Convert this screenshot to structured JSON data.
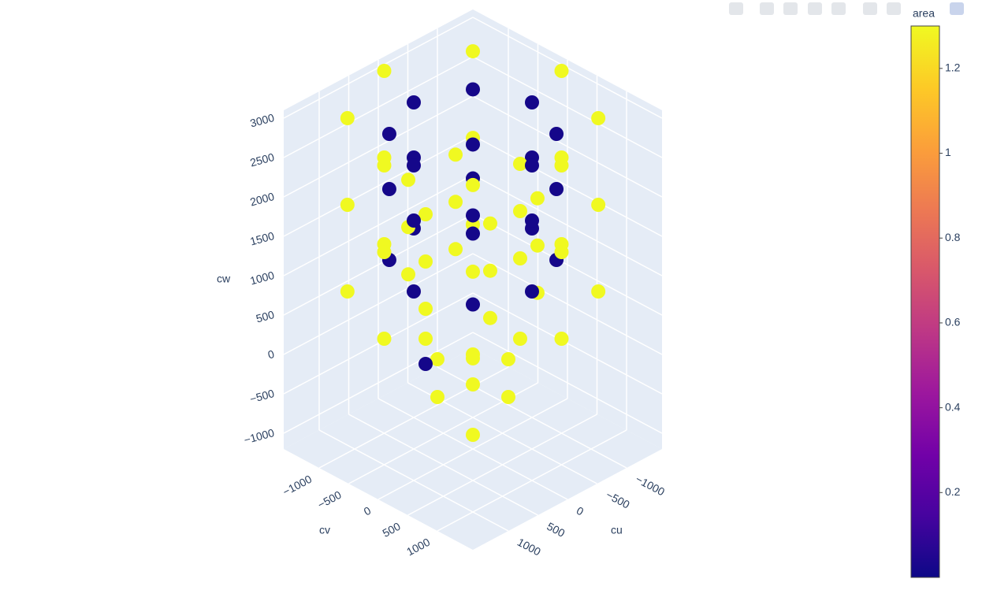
{
  "chart_data": {
    "type": "scatter3d",
    "x_label": "cu",
    "y_label": "cv",
    "z_label": "cw",
    "xlim": [
      -1600,
      1600
    ],
    "ylim": [
      -1600,
      1600
    ],
    "zlim": [
      -1200,
      3100
    ],
    "xticks": [
      {
        "value": -1000,
        "label": "−1000"
      },
      {
        "value": -500,
        "label": "−500"
      },
      0,
      500,
      1000
    ],
    "yticks": [
      {
        "value": -1000,
        "label": "−1000"
      },
      {
        "value": -500,
        "label": "−500"
      },
      0,
      500,
      1000
    ],
    "zticks": [
      {
        "value": -1000,
        "label": "−1000"
      },
      {
        "value": -500,
        "label": "−500"
      },
      0,
      500,
      1000,
      1500,
      2000,
      2500,
      3000
    ],
    "grid": true,
    "colorbar": {
      "title": "area",
      "clim": [
        0,
        1.3
      ],
      "ticks": [
        0.2,
        0.4,
        0.6,
        0.8,
        1,
        1.2
      ],
      "colorscale": [
        "#0d0887",
        "#46039f",
        "#7201a8",
        "#9c179e",
        "#bd3786",
        "#d8576b",
        "#ed7953",
        "#fb9f3a",
        "#fdca26",
        "#f0f921"
      ]
    },
    "x": [
      1500,
      1061,
      0,
      -1061,
      -1500,
      -1061,
      0,
      1061,
      1500,
      1061,
      0,
      -1061,
      -1500,
      -1061,
      0,
      1061,
      1500,
      1061,
      0,
      -1061,
      -1500,
      -1061,
      0,
      1061,
      1000,
      707,
      0,
      -707,
      -1000,
      -707,
      0,
      707,
      1000,
      707,
      0,
      -707,
      -1000,
      -707,
      0,
      707,
      1000,
      707,
      0,
      -707,
      -1000,
      -707,
      0,
      707,
      800,
      400,
      -400,
      -800,
      -400,
      400,
      800,
      400,
      -400,
      -800,
      -400,
      400,
      800,
      400,
      -400,
      -800,
      -400,
      400,
      0,
      600,
      -600,
      0,
      0,
      400,
      -400,
      400,
      -400,
      300
    ],
    "y": [
      0,
      1061,
      1500,
      1061,
      0,
      -1061,
      -1500,
      -1061,
      0,
      1061,
      1500,
      1061,
      0,
      -1061,
      -1500,
      -1061,
      0,
      1061,
      1500,
      1061,
      0,
      -1061,
      -1500,
      -1061,
      0,
      707,
      1000,
      707,
      0,
      -707,
      -1000,
      -707,
      0,
      707,
      1000,
      707,
      0,
      -707,
      -1000,
      -707,
      0,
      707,
      1000,
      707,
      0,
      -707,
      -1000,
      -707,
      0,
      693,
      693,
      0,
      -693,
      -693,
      0,
      693,
      693,
      0,
      -693,
      -693,
      0,
      693,
      693,
      0,
      -693,
      -693,
      0,
      0,
      0,
      600,
      -600,
      400,
      -400,
      -400,
      400,
      -500
    ],
    "z": [
      800,
      800,
      800,
      800,
      800,
      800,
      800,
      800,
      1900,
      1900,
      1900,
      1900,
      1900,
      1900,
      1900,
      1900,
      3000,
      3000,
      3000,
      3000,
      3000,
      3000,
      3000,
      3000,
      1200,
      1200,
      1200,
      1200,
      1200,
      1200,
      1200,
      1200,
      2100,
      2100,
      2100,
      2100,
      2100,
      2100,
      2100,
      2100,
      2800,
      2800,
      2800,
      2800,
      2800,
      2800,
      2800,
      2800,
      900,
      900,
      900,
      900,
      900,
      900,
      1500,
      1500,
      1500,
      1500,
      1500,
      1500,
      2100,
      2100,
      2100,
      2100,
      2100,
      2100,
      0,
      -300,
      -300,
      -300,
      -300,
      -700,
      -700,
      200,
      200,
      -200
    ],
    "color_values": [
      1.3,
      1.3,
      1.3,
      1.3,
      1.3,
      1.3,
      1.3,
      1.3,
      1.3,
      1.3,
      1.3,
      1.3,
      1.3,
      1.3,
      1.3,
      1.3,
      1.3,
      1.3,
      1.3,
      1.3,
      1.3,
      1.3,
      1.3,
      1.3,
      0.02,
      0.02,
      0.02,
      0.02,
      0.02,
      0.02,
      0.02,
      0.02,
      0.02,
      0.02,
      0.02,
      0.02,
      0.02,
      0.02,
      0.02,
      0.02,
      0.02,
      0.02,
      0.02,
      0.02,
      0.02,
      0.02,
      0.02,
      0.02,
      1.3,
      1.3,
      1.3,
      1.3,
      1.3,
      1.3,
      1.3,
      1.3,
      1.3,
      1.3,
      1.3,
      1.3,
      1.3,
      1.3,
      1.3,
      1.3,
      1.3,
      1.3,
      1.3,
      1.3,
      1.3,
      1.3,
      1.3,
      1.3,
      1.3,
      1.3,
      1.3,
      0.02
    ]
  }
}
